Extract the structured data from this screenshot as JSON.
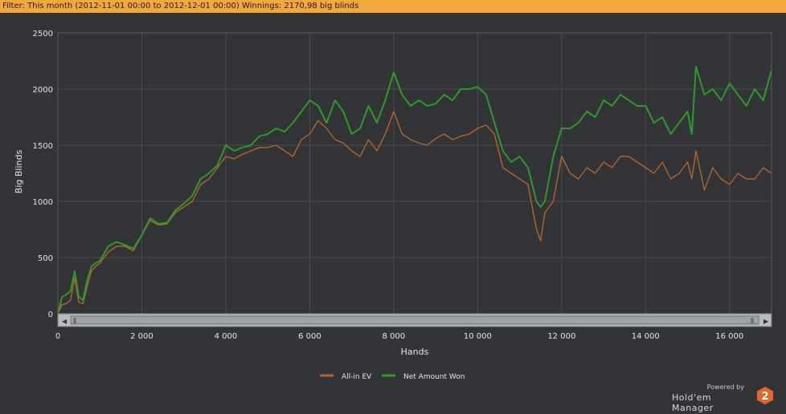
{
  "filter_text": "Filter: This month (2012-11-01 00:00 to 2012-12-01 00:00) Winnings: 2170,98 big blinds",
  "branding": {
    "powered": "Powered by",
    "name": "Hold'em Manager",
    "badge": "2"
  },
  "colors": {
    "all_in_ev": "#b5652a",
    "net_won": "#2e9a2a",
    "background": "#323437",
    "filter_bar": "#f3a73d"
  },
  "chart_data": {
    "type": "line",
    "xlabel": "Hands",
    "ylabel": "Big Blinds",
    "xlim": [
      0,
      17000
    ],
    "ylim": [
      0,
      2500
    ],
    "xticks": [
      0,
      2000,
      4000,
      6000,
      8000,
      10000,
      12000,
      14000,
      16000
    ],
    "xtick_labels": [
      "0",
      "2 000",
      "4 000",
      "6 000",
      "8 000",
      "10 000",
      "12 000",
      "14 000",
      "16 000"
    ],
    "yticks": [
      0,
      500,
      1000,
      1500,
      2000,
      2500
    ],
    "ytick_labels": [
      "0",
      "500",
      "1000",
      "1500",
      "2000",
      "2500"
    ],
    "grid": true,
    "legend_position": "bottom-center",
    "x": [
      0,
      100,
      200,
      300,
      400,
      500,
      600,
      700,
      800,
      900,
      1000,
      1200,
      1400,
      1600,
      1800,
      2000,
      2200,
      2400,
      2600,
      2800,
      3000,
      3200,
      3400,
      3600,
      3800,
      4000,
      4200,
      4400,
      4600,
      4800,
      5000,
      5200,
      5400,
      5600,
      5800,
      6000,
      6200,
      6400,
      6600,
      6800,
      7000,
      7200,
      7400,
      7600,
      7800,
      8000,
      8200,
      8400,
      8600,
      8800,
      9000,
      9200,
      9400,
      9600,
      9800,
      10000,
      10200,
      10400,
      10600,
      10800,
      11000,
      11200,
      11400,
      11500,
      11600,
      11800,
      12000,
      12200,
      12400,
      12600,
      12800,
      13000,
      13200,
      13400,
      13600,
      13800,
      14000,
      14200,
      14400,
      14600,
      14800,
      15000,
      15100,
      15200,
      15400,
      15600,
      15800,
      16000,
      16200,
      16400,
      16600,
      16800,
      17000
    ],
    "series": [
      {
        "name": "All-in EV",
        "values": [
          0,
          80,
          90,
          120,
          320,
          100,
          90,
          250,
          380,
          420,
          450,
          550,
          600,
          600,
          560,
          700,
          830,
          790,
          800,
          900,
          950,
          1000,
          1150,
          1200,
          1300,
          1400,
          1380,
          1420,
          1450,
          1480,
          1480,
          1500,
          1450,
          1400,
          1550,
          1600,
          1720,
          1650,
          1550,
          1520,
          1450,
          1400,
          1550,
          1450,
          1600,
          1800,
          1600,
          1550,
          1520,
          1500,
          1560,
          1600,
          1550,
          1580,
          1600,
          1650,
          1680,
          1600,
          1300,
          1250,
          1200,
          1150,
          750,
          650,
          900,
          1000,
          1400,
          1250,
          1200,
          1300,
          1250,
          1350,
          1300,
          1400,
          1400,
          1350,
          1300,
          1250,
          1350,
          1200,
          1250,
          1350,
          1200,
          1450,
          1100,
          1300,
          1200,
          1150,
          1250,
          1200,
          1200,
          1300,
          1250
        ]
      },
      {
        "name": "Net Amount Won",
        "values": [
          0,
          150,
          170,
          200,
          380,
          150,
          120,
          300,
          420,
          450,
          470,
          600,
          640,
          610,
          580,
          700,
          850,
          800,
          810,
          920,
          980,
          1050,
          1200,
          1250,
          1320,
          1500,
          1450,
          1480,
          1500,
          1580,
          1600,
          1650,
          1620,
          1700,
          1800,
          1900,
          1850,
          1700,
          1900,
          1800,
          1600,
          1650,
          1850,
          1700,
          1900,
          2150,
          1950,
          1850,
          1900,
          1850,
          1870,
          1950,
          1900,
          2000,
          2000,
          2020,
          1950,
          1700,
          1450,
          1350,
          1400,
          1300,
          1000,
          950,
          1000,
          1400,
          1650,
          1650,
          1700,
          1800,
          1750,
          1900,
          1850,
          1950,
          1900,
          1850,
          1850,
          1700,
          1750,
          1600,
          1700,
          1800,
          1600,
          2200,
          1950,
          2000,
          1900,
          2050,
          1950,
          1850,
          2000,
          1900,
          2170
        ]
      }
    ]
  }
}
